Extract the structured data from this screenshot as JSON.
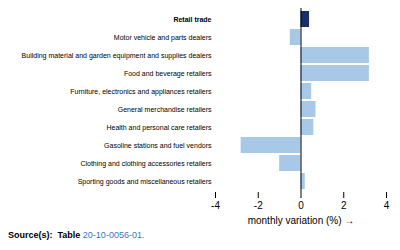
{
  "chart_data": {
    "type": "bar",
    "orientation": "horizontal",
    "categories": [
      "Retail trade",
      "Motor vehicle and parts dealers",
      "Building material and garden equipment and supplies dealers",
      "Food and beverage retailers",
      "Furniture, electronics and appliances retailers",
      "General merchandise retailers",
      "Health and personal care retailers",
      "Gasoline stations and fuel vendors",
      "Clothing and clothing accessories retailers",
      "Sporting goods and miscellaneous retailers"
    ],
    "values": [
      0.4,
      -0.5,
      3.2,
      3.2,
      0.5,
      0.7,
      0.6,
      -2.8,
      -1.0,
      0.2
    ],
    "colors": [
      "#1a2e6c",
      "#a8c8e8",
      "#a8c8e8",
      "#a8c8e8",
      "#a8c8e8",
      "#a8c8e8",
      "#a8c8e8",
      "#a8c8e8",
      "#a8c8e8",
      "#a8c8e8"
    ],
    "xlabel": "monthly variation (%)",
    "xlim": [
      -4,
      4
    ],
    "xticks": [
      -4,
      -2,
      0,
      2,
      4
    ],
    "grid": false,
    "annotations": [
      "Source(s):  Table ",
      "20-10-0056-01."
    ]
  }
}
